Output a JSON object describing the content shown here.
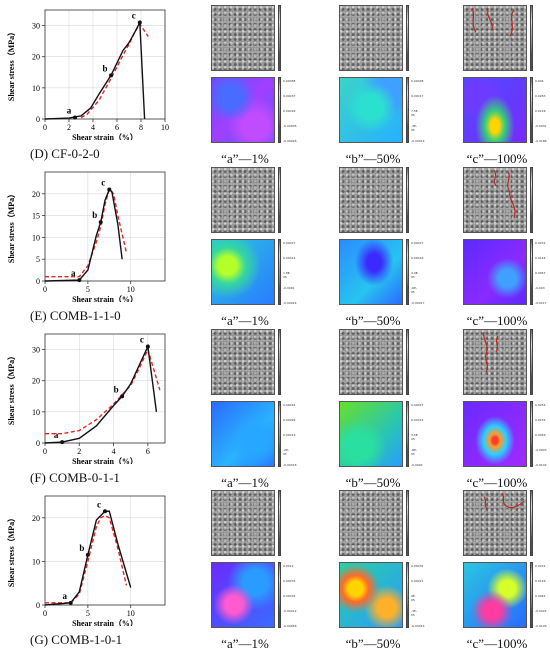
{
  "colors": {
    "experiment_line": "#111111",
    "model_line": "#e32626",
    "colorbar": "jet"
  },
  "rows": [
    {
      "caption": "(D) CF-0-2-0",
      "frames": [
        "“a”—1%",
        "“b”—50%",
        "“c”—100%"
      ],
      "cracks": [
        false,
        false,
        true
      ],
      "colorbar_ticks": [
        [
          "0.00058",
          "0.00037",
          "0.00016",
          "-0.00005",
          "-0.00026"
        ],
        [
          "0.00028",
          "0.00017",
          "7.5E-05",
          "-3E-05",
          "-0.00014"
        ],
        [
          "0.044",
          "0.0283",
          "0.0126",
          "-0.0031",
          "-0.0188"
        ]
      ],
      "contour": "purple"
    },
    {
      "caption": "(E) COMB-1-1-0",
      "frames": [
        "“a”—1%",
        "“b”—50%",
        "“c”—100%"
      ],
      "cracks": [
        false,
        false,
        true
      ],
      "colorbar_ticks": [
        [
          "0.00027",
          "0.00014",
          "1.8E-05",
          "-0.0001",
          "-0.00024"
        ],
        [
          "0.00027",
          "0.00016",
          "4.9E-05",
          "-6E-05",
          "-0.00017"
        ],
        [
          "0.0231",
          "0.0144",
          "0.0057",
          "-0.003",
          "-0.0117"
        ]
      ],
      "contour": "green"
    },
    {
      "caption": "(F) COMB-0-1-1",
      "frames": [
        "“a”—1%",
        "“b”—50%",
        "“c”—100%"
      ],
      "cracks": [
        false,
        false,
        true
      ],
      "colorbar_ticks": [
        [
          "0.00044",
          "0.00029",
          "0.00013",
          "-2E-05",
          "-0.00018"
        ],
        [
          "0.00027",
          "0.00015",
          "3.5E-05",
          "-8E-05",
          "-0.0002"
        ],
        [
          "0.0254",
          "0.0155",
          "0.0056",
          "-0.0043",
          "-0.0142"
        ]
      ],
      "contour": "blue"
    },
    {
      "caption": "(G) COMB-1-0-1",
      "frames": [
        "“a”—1%",
        "“b”—50%",
        "“c”—100%"
      ],
      "cracks": [
        false,
        false,
        true
      ],
      "colorbar_ticks": [
        [
          "0.0012",
          "0.00076",
          "0.00032",
          "-0.00012",
          "-0.00056"
        ],
        [
          "0.00032",
          "0.00021",
          "9E-05",
          "-3E-05",
          "-0.00014"
        ],
        [
          "0.0231",
          "0.0146",
          "0.0061",
          "-0.0024",
          "-0.0109"
        ]
      ],
      "contour": "mixed"
    }
  ],
  "chart_data": [
    {
      "type": "line",
      "ylabel": "Shear stress（MPa）",
      "xlabel": "Shear strain（%）",
      "xlim": [
        0,
        10
      ],
      "ylim": [
        0,
        35
      ],
      "xticks": [
        0,
        2,
        4,
        6,
        8,
        10
      ],
      "yticks": [
        0,
        10,
        20,
        30
      ],
      "series": [
        {
          "x": [
            0,
            2.0,
            3.0,
            3.8,
            4.5,
            5.5,
            6.5,
            7.0,
            7.5,
            7.9,
            8.3
          ],
          "y": [
            0,
            0.3,
            1.0,
            3.5,
            8.0,
            14.0,
            22.0,
            24.5,
            28.0,
            31.0,
            0
          ]
        },
        {
          "x": [
            3.0,
            3.5,
            4.5,
            5.5,
            6.5,
            7.0,
            7.5,
            7.9,
            8.6
          ],
          "y": [
            0.5,
            1.5,
            6.0,
            13.0,
            20.5,
            24.0,
            28.0,
            30.5,
            26.5
          ]
        }
      ],
      "points": [
        {
          "label": "a",
          "x": 2.5,
          "y": 0.5
        },
        {
          "label": "b",
          "x": 5.5,
          "y": 14.0
        },
        {
          "label": "c",
          "x": 7.9,
          "y": 31.0
        }
      ]
    },
    {
      "type": "line",
      "ylabel": "Shear stress（MPa）",
      "xlabel": "Shear strain（%）",
      "xlim": [
        0,
        14
      ],
      "ylim": [
        0,
        25
      ],
      "xticks": [
        0,
        5,
        10
      ],
      "yticks": [
        0,
        5,
        10,
        15,
        20
      ],
      "series": [
        {
          "x": [
            0,
            4.0,
            5.0,
            6.0,
            6.5,
            7.0,
            7.5,
            7.8,
            8.5,
            9.0
          ],
          "y": [
            0,
            0.2,
            2.5,
            10.5,
            13.5,
            18.5,
            21.0,
            20.5,
            13.0,
            5.0
          ]
        },
        {
          "x": [
            0,
            4.0,
            5.0,
            6.0,
            6.5,
            7.0,
            7.5,
            8.0,
            8.5,
            9.5
          ],
          "y": [
            1.0,
            1.0,
            3.5,
            9.0,
            12.5,
            17.5,
            21.0,
            20.0,
            15.0,
            6.5
          ]
        }
      ],
      "points": [
        {
          "label": "a",
          "x": 4.0,
          "y": 0.2
        },
        {
          "label": "b",
          "x": 6.5,
          "y": 13.5
        },
        {
          "label": "c",
          "x": 7.5,
          "y": 21.0
        }
      ]
    },
    {
      "type": "line",
      "ylabel": "Shear stress（MPa）",
      "xlabel": "Shear strain（%）",
      "xlim": [
        0,
        7
      ],
      "ylim": [
        0,
        35
      ],
      "xticks": [
        0,
        2,
        4,
        6
      ],
      "yticks": [
        0,
        10,
        20,
        30
      ],
      "series": [
        {
          "x": [
            0,
            1.0,
            2.0,
            3.0,
            4.0,
            4.5,
            5.0,
            5.5,
            6.0,
            6.5
          ],
          "y": [
            0,
            0.3,
            1.5,
            5.5,
            12.0,
            15.0,
            19.0,
            25.0,
            31.0,
            10.0
          ]
        },
        {
          "x": [
            0,
            1.0,
            2.0,
            3.0,
            4.0,
            4.5,
            5.0,
            5.5,
            6.0,
            6.7
          ],
          "y": [
            3.0,
            3.0,
            4.0,
            7.5,
            12.5,
            15.5,
            18.5,
            24.0,
            30.0,
            17.0
          ]
        }
      ],
      "points": [
        {
          "label": "a",
          "x": 1.0,
          "y": 0.3
        },
        {
          "label": "b",
          "x": 4.5,
          "y": 15.0
        },
        {
          "label": "c",
          "x": 6.0,
          "y": 31.0
        }
      ]
    },
    {
      "type": "line",
      "ylabel": "Shear stress（MPa）",
      "xlabel": "Shear strain（%）",
      "xlim": [
        0,
        14
      ],
      "ylim": [
        0,
        25
      ],
      "xticks": [
        0,
        5,
        10
      ],
      "yticks": [
        0,
        10,
        20
      ],
      "series": [
        {
          "x": [
            0,
            3.0,
            4.0,
            5.0,
            6.0,
            6.5,
            7.0,
            7.5,
            8.5,
            10.0
          ],
          "y": [
            0,
            0.5,
            3.0,
            11.5,
            19.5,
            20.5,
            21.5,
            21.5,
            14.0,
            4.0
          ]
        },
        {
          "x": [
            0,
            3.0,
            4.0,
            5.0,
            6.0,
            6.5,
            7.0,
            7.5,
            8.5,
            9.5
          ],
          "y": [
            0.5,
            0.5,
            2.5,
            10.0,
            18.0,
            20.0,
            20.5,
            20.0,
            13.0,
            4.5
          ]
        }
      ],
      "points": [
        {
          "label": "a",
          "x": 3.0,
          "y": 0.5
        },
        {
          "label": "b",
          "x": 5.0,
          "y": 11.5
        },
        {
          "label": "c",
          "x": 7.0,
          "y": 21.5
        }
      ]
    }
  ]
}
